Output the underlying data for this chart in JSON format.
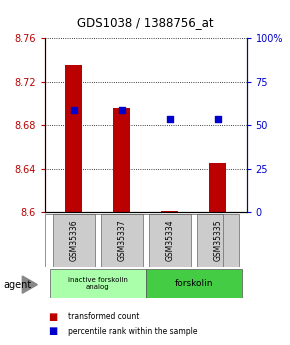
{
  "title": "GDS1038 / 1388756_at",
  "samples": [
    "GSM35336",
    "GSM35337",
    "GSM35334",
    "GSM35335"
  ],
  "bar_values": [
    8.735,
    8.696,
    8.601,
    8.645
  ],
  "blue_values": [
    8.694,
    8.694,
    8.686,
    8.686
  ],
  "ylim_left": [
    8.6,
    8.76
  ],
  "ylim_right": [
    0,
    100
  ],
  "yticks_left": [
    8.6,
    8.64,
    8.68,
    8.72,
    8.76
  ],
  "yticks_right": [
    0,
    25,
    50,
    75,
    100
  ],
  "ytick_labels_right": [
    "0",
    "25",
    "50",
    "75",
    "100%"
  ],
  "bar_color": "#bb0000",
  "blue_color": "#0000cc",
  "group1_label": "inactive forskolin\nanalog",
  "group2_label": "forskolin",
  "agent_label": "agent",
  "legend_bar_label": "transformed count",
  "legend_blue_label": "percentile rank within the sample",
  "group1_color": "#aaffaa",
  "group2_color": "#44cc44",
  "sample_box_color": "#cccccc",
  "bar_width": 0.35
}
